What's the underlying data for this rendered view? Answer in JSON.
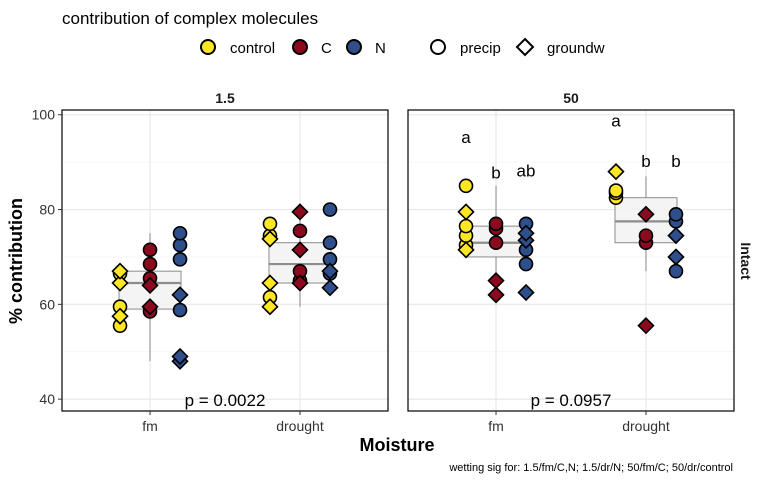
{
  "chart_data": {
    "type": "scatter",
    "title": "contribution of complex molecules",
    "ylabel": "% contribution",
    "xlabel": "Moisture",
    "ylim": [
      37.5,
      101
    ],
    "yticks": [
      40,
      60,
      80,
      100
    ],
    "categories": [
      "fm",
      "drought"
    ],
    "strip_label": "Intact",
    "caption": "wetting sig for: 1.5/fm/C,N; 1.5/dr/N; 50/fm/C; 50/dr/control",
    "colors": {
      "control": "#FDE725",
      "C": "#8B0A1E",
      "N": "#2E4F8C"
    },
    "legend": {
      "color_items": [
        {
          "key": "control",
          "label": "control",
          "color": "#FDE725"
        },
        {
          "key": "C",
          "label": "C",
          "color": "#8B0A1E"
        },
        {
          "key": "N",
          "label": "N",
          "color": "#2E4F8C"
        }
      ],
      "shape_items": [
        {
          "key": "precip",
          "label": "precip",
          "shape": "circle"
        },
        {
          "key": "groundw",
          "label": "groundw",
          "shape": "diamond"
        }
      ]
    },
    "panels": [
      {
        "label": "1.5",
        "pvalue": "p = 0.0022",
        "boxes": [
          {
            "x": "fm",
            "q1": 59,
            "median": 64.5,
            "q3": 67,
            "lo": 48,
            "hi": 75
          },
          {
            "x": "drought",
            "q1": 64.5,
            "median": 68.5,
            "q3": 73,
            "lo": 59.5,
            "hi": 79.5
          }
        ],
        "letters": [],
        "points": [
          {
            "x": "fm",
            "g": "control",
            "s": "precip",
            "y": 55.5
          },
          {
            "x": "fm",
            "g": "control",
            "s": "precip",
            "y": 59.5
          },
          {
            "x": "fm",
            "g": "control",
            "s": "precip",
            "y": 66.5
          },
          {
            "x": "fm",
            "g": "control",
            "s": "groundw",
            "y": 57.5
          },
          {
            "x": "fm",
            "g": "control",
            "s": "groundw",
            "y": 64.5
          },
          {
            "x": "fm",
            "g": "control",
            "s": "groundw",
            "y": 67
          },
          {
            "x": "fm",
            "g": "C",
            "s": "precip",
            "y": 58.5
          },
          {
            "x": "fm",
            "g": "C",
            "s": "precip",
            "y": 65.5
          },
          {
            "x": "fm",
            "g": "C",
            "s": "precip",
            "y": 68.5
          },
          {
            "x": "fm",
            "g": "C",
            "s": "precip",
            "y": 71.5
          },
          {
            "x": "fm",
            "g": "C",
            "s": "groundw",
            "y": 59.5
          },
          {
            "x": "fm",
            "g": "C",
            "s": "groundw",
            "y": 64
          },
          {
            "x": "fm",
            "g": "N",
            "s": "precip",
            "y": 58.8
          },
          {
            "x": "fm",
            "g": "N",
            "s": "precip",
            "y": 69.5
          },
          {
            "x": "fm",
            "g": "N",
            "s": "precip",
            "y": 72.5
          },
          {
            "x": "fm",
            "g": "N",
            "s": "precip",
            "y": 75
          },
          {
            "x": "fm",
            "g": "N",
            "s": "groundw",
            "y": 48
          },
          {
            "x": "fm",
            "g": "N",
            "s": "groundw",
            "y": 49
          },
          {
            "x": "fm",
            "g": "N",
            "s": "groundw",
            "y": 62
          },
          {
            "x": "drought",
            "g": "control",
            "s": "precip",
            "y": 61.5
          },
          {
            "x": "drought",
            "g": "control",
            "s": "precip",
            "y": 74.5
          },
          {
            "x": "drought",
            "g": "control",
            "s": "precip",
            "y": 77
          },
          {
            "x": "drought",
            "g": "control",
            "s": "groundw",
            "y": 59.5
          },
          {
            "x": "drought",
            "g": "control",
            "s": "groundw",
            "y": 64.5
          },
          {
            "x": "drought",
            "g": "control",
            "s": "groundw",
            "y": 73.8
          },
          {
            "x": "drought",
            "g": "C",
            "s": "precip",
            "y": 65
          },
          {
            "x": "drought",
            "g": "C",
            "s": "precip",
            "y": 67
          },
          {
            "x": "drought",
            "g": "C",
            "s": "precip",
            "y": 75.5
          },
          {
            "x": "drought",
            "g": "C",
            "s": "groundw",
            "y": 64.5
          },
          {
            "x": "drought",
            "g": "C",
            "s": "groundw",
            "y": 71.5
          },
          {
            "x": "drought",
            "g": "C",
            "s": "groundw",
            "y": 79.5
          },
          {
            "x": "drought",
            "g": "N",
            "s": "precip",
            "y": 66.5
          },
          {
            "x": "drought",
            "g": "N",
            "s": "precip",
            "y": 69.5
          },
          {
            "x": "drought",
            "g": "N",
            "s": "precip",
            "y": 73
          },
          {
            "x": "drought",
            "g": "N",
            "s": "precip",
            "y": 80
          },
          {
            "x": "drought",
            "g": "N",
            "s": "groundw",
            "y": 63.5
          },
          {
            "x": "drought",
            "g": "N",
            "s": "groundw",
            "y": 67
          }
        ]
      },
      {
        "label": "50",
        "pvalue": "p = 0.0957",
        "boxes": [
          {
            "x": "fm",
            "q1": 70,
            "median": 73,
            "q3": 76.5,
            "lo": 62,
            "hi": 85
          },
          {
            "x": "drought",
            "q1": 73,
            "median": 77.5,
            "q3": 82.5,
            "lo": 67,
            "hi": 87
          }
        ],
        "letters": [
          {
            "x": "fm",
            "g": "control",
            "text": "a",
            "y": 94
          },
          {
            "x": "fm",
            "g": "C",
            "text": "b",
            "y": 86.5
          },
          {
            "x": "fm",
            "g": "N",
            "text": "ab",
            "y": 87
          },
          {
            "x": "drought",
            "g": "control",
            "text": "a",
            "y": 97.5
          },
          {
            "x": "drought",
            "g": "C",
            "text": "b",
            "y": 89
          },
          {
            "x": "drought",
            "g": "N",
            "text": "b",
            "y": 89
          }
        ],
        "points": [
          {
            "x": "fm",
            "g": "control",
            "s": "precip",
            "y": 72.5
          },
          {
            "x": "fm",
            "g": "control",
            "s": "precip",
            "y": 74.5
          },
          {
            "x": "fm",
            "g": "control",
            "s": "precip",
            "y": 76.5
          },
          {
            "x": "fm",
            "g": "control",
            "s": "precip",
            "y": 85
          },
          {
            "x": "fm",
            "g": "control",
            "s": "groundw",
            "y": 71.5
          },
          {
            "x": "fm",
            "g": "control",
            "s": "groundw",
            "y": 79.5
          },
          {
            "x": "fm",
            "g": "C",
            "s": "precip",
            "y": 73
          },
          {
            "x": "fm",
            "g": "C",
            "s": "precip",
            "y": 76
          },
          {
            "x": "fm",
            "g": "C",
            "s": "precip",
            "y": 77
          },
          {
            "x": "fm",
            "g": "C",
            "s": "groundw",
            "y": 62
          },
          {
            "x": "fm",
            "g": "C",
            "s": "groundw",
            "y": 65
          },
          {
            "x": "fm",
            "g": "N",
            "s": "precip",
            "y": 68.5
          },
          {
            "x": "fm",
            "g": "N",
            "s": "precip",
            "y": 71.5
          },
          {
            "x": "fm",
            "g": "N",
            "s": "precip",
            "y": 77
          },
          {
            "x": "fm",
            "g": "N",
            "s": "groundw",
            "y": 62.5
          },
          {
            "x": "fm",
            "g": "N",
            "s": "groundw",
            "y": 73.5
          },
          {
            "x": "fm",
            "g": "N",
            "s": "groundw",
            "y": 75
          },
          {
            "x": "drought",
            "g": "control",
            "s": "precip",
            "y": 82.5
          },
          {
            "x": "drought",
            "g": "control",
            "s": "precip",
            "y": 83.5
          },
          {
            "x": "drought",
            "g": "control",
            "s": "precip",
            "y": 84
          },
          {
            "x": "drought",
            "g": "control",
            "s": "groundw",
            "y": 88
          },
          {
            "x": "drought",
            "g": "C",
            "s": "precip",
            "y": 73
          },
          {
            "x": "drought",
            "g": "C",
            "s": "precip",
            "y": 74.5
          },
          {
            "x": "drought",
            "g": "C",
            "s": "groundw",
            "y": 55.5
          },
          {
            "x": "drought",
            "g": "C",
            "s": "groundw",
            "y": 79
          },
          {
            "x": "drought",
            "g": "N",
            "s": "precip",
            "y": 67
          },
          {
            "x": "drought",
            "g": "N",
            "s": "precip",
            "y": 77.5
          },
          {
            "x": "drought",
            "g": "N",
            "s": "precip",
            "y": 79
          },
          {
            "x": "drought",
            "g": "N",
            "s": "groundw",
            "y": 70
          },
          {
            "x": "drought",
            "g": "N",
            "s": "groundw",
            "y": 74.5
          }
        ]
      }
    ]
  }
}
